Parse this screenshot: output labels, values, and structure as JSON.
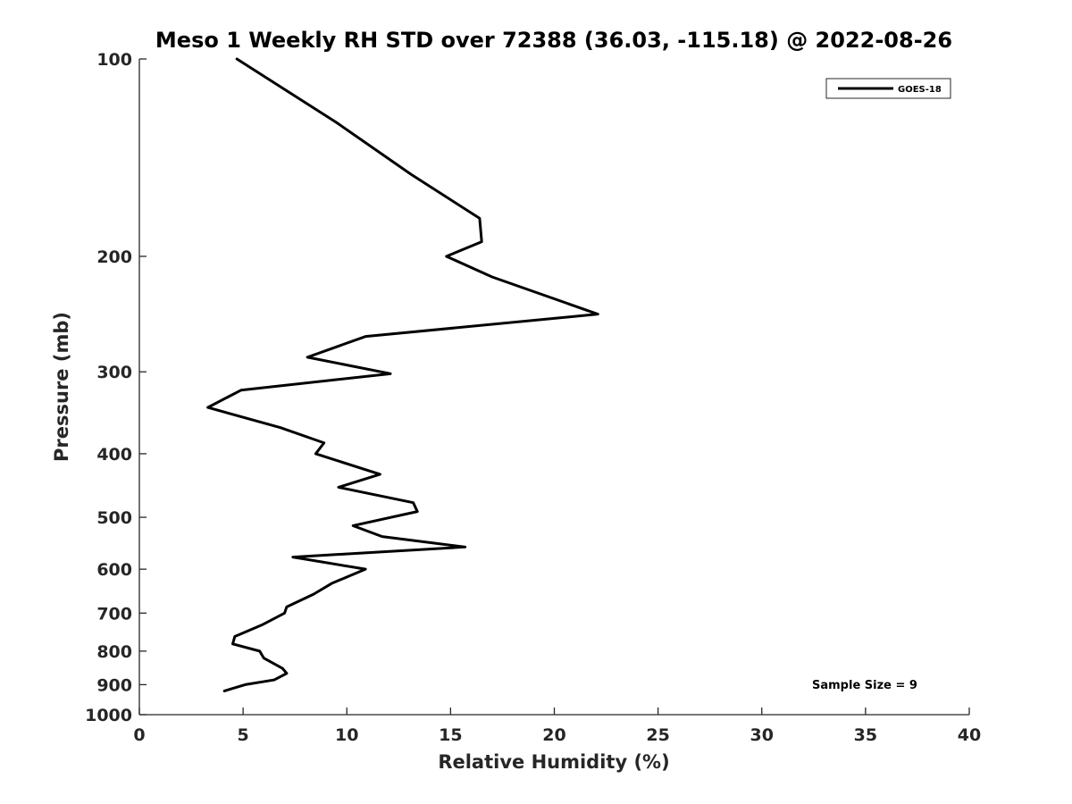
{
  "chart_data": {
    "type": "line",
    "title": "Meso 1 Weekly RH STD over 72388 (36.03, -115.18) @ 2022-08-26",
    "xlabel": "Relative Humidity (%)",
    "ylabel": "Pressure (mb)",
    "xlim": [
      0,
      40
    ],
    "ylim": [
      100,
      1000
    ],
    "y_scale": "log",
    "y_reversed": true,
    "x_ticks": [
      0,
      5,
      10,
      15,
      20,
      25,
      30,
      35,
      40
    ],
    "y_ticks": [
      100,
      200,
      300,
      400,
      500,
      600,
      700,
      800,
      900,
      1000
    ],
    "grid": false,
    "legend_position": "top-right",
    "series": [
      {
        "name": "GOES-18",
        "color": "#000000",
        "points": [
          {
            "x": 4.7,
            "p": 100
          },
          {
            "x": 9.5,
            "p": 125
          },
          {
            "x": 13.1,
            "p": 150
          },
          {
            "x": 16.4,
            "p": 175
          },
          {
            "x": 16.5,
            "p": 190
          },
          {
            "x": 14.8,
            "p": 200
          },
          {
            "x": 17.0,
            "p": 215
          },
          {
            "x": 22.1,
            "p": 245
          },
          {
            "x": 10.9,
            "p": 265
          },
          {
            "x": 8.1,
            "p": 285
          },
          {
            "x": 12.1,
            "p": 302
          },
          {
            "x": 4.9,
            "p": 320
          },
          {
            "x": 3.3,
            "p": 340
          },
          {
            "x": 6.8,
            "p": 365
          },
          {
            "x": 8.9,
            "p": 385
          },
          {
            "x": 8.5,
            "p": 400
          },
          {
            "x": 11.6,
            "p": 430
          },
          {
            "x": 9.6,
            "p": 450
          },
          {
            "x": 13.2,
            "p": 475
          },
          {
            "x": 13.4,
            "p": 490
          },
          {
            "x": 10.3,
            "p": 515
          },
          {
            "x": 11.7,
            "p": 535
          },
          {
            "x": 15.7,
            "p": 555
          },
          {
            "x": 7.4,
            "p": 575
          },
          {
            "x": 10.9,
            "p": 600
          },
          {
            "x": 9.3,
            "p": 630
          },
          {
            "x": 8.4,
            "p": 655
          },
          {
            "x": 7.1,
            "p": 685
          },
          {
            "x": 7.0,
            "p": 700
          },
          {
            "x": 5.9,
            "p": 730
          },
          {
            "x": 4.6,
            "p": 760
          },
          {
            "x": 4.5,
            "p": 780
          },
          {
            "x": 5.8,
            "p": 800
          },
          {
            "x": 6.0,
            "p": 820
          },
          {
            "x": 6.9,
            "p": 850
          },
          {
            "x": 7.1,
            "p": 865
          },
          {
            "x": 6.5,
            "p": 885
          },
          {
            "x": 5.1,
            "p": 900
          },
          {
            "x": 4.1,
            "p": 920
          }
        ]
      }
    ],
    "annotations": [
      {
        "text": "Sample Size = 9"
      }
    ]
  }
}
